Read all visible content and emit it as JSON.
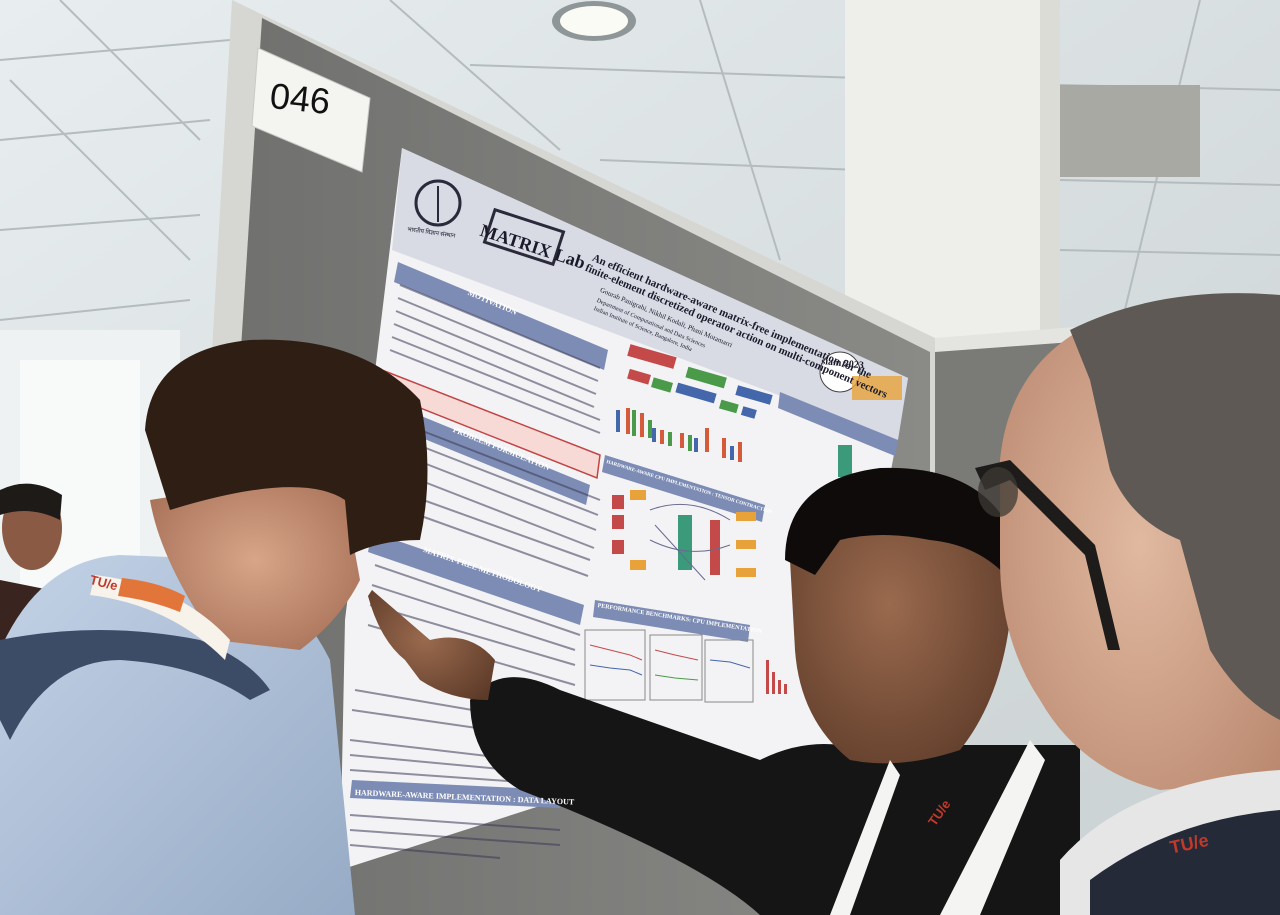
{
  "board_number": "046",
  "poster": {
    "title_line1": "An efficient hardware-aware matrix-free implementation for the",
    "title_line2": "finite-element discretized operator action on multi-component vectors",
    "authors": "Gourab Panigrahi, Nikhil Kodali, Phani Motamarri",
    "affiliation": "Department of Computational and Data Sciences",
    "institute": "Indian Institute of Science, Bangalore, India",
    "lab_logo": "MATRIX Lab",
    "institute_logo_text": "भारतीय विज्ञान संस्थान",
    "conference_logo": "siam 2023",
    "sections": {
      "motivation": "MOTIVATION",
      "problem": "PROBLEM FORMULATION",
      "method": "MATRIX-FREE METHODOLOGY",
      "layout": "HARDWARE-AWARE IMPLEMENTATION : DATA LAYOUT",
      "cpu": "HARDWARE-AWARE CPU IMPLEMENTATION : TENSOR CONTRACTION",
      "bench": "PERFORMANCE BENCHMARKS: CPU IMPLEMENTATION"
    }
  },
  "lanyards": {
    "left": "TU/e",
    "middle": "TU/e",
    "right": "TU/e"
  }
}
